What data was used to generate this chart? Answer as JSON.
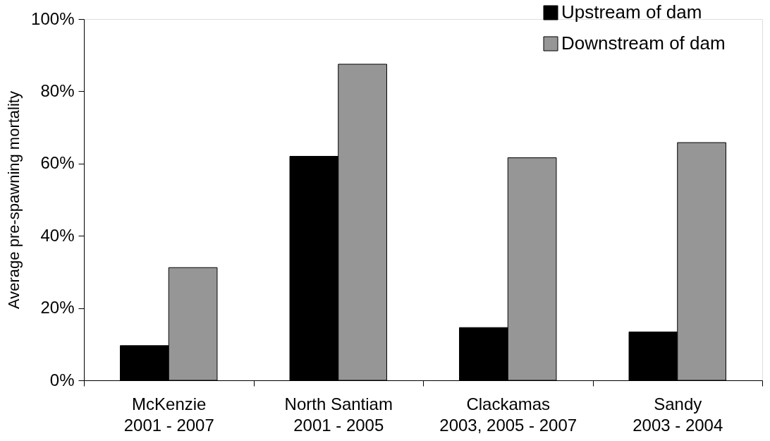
{
  "chart_data": {
    "type": "bar",
    "ylabel": "Average pre-spawning mortality",
    "categories": [
      "McKenzie\n2001 - 2007",
      "North Santiam\n2001 - 2005",
      "Clackamas\n2003, 2005 - 2007",
      "Sandy\n2003 - 2004"
    ],
    "series": [
      {
        "name": "Upstream of dam",
        "color": "#000000",
        "values": [
          9.6,
          62,
          14.6,
          13.4
        ]
      },
      {
        "name": "Downstream of dam",
        "color": "#969696",
        "values": [
          31.2,
          87.5,
          61.6,
          65.8
        ]
      }
    ],
    "ylim": [
      0,
      100
    ],
    "yticks": [
      {
        "value": 0,
        "label": "0%"
      },
      {
        "value": 20,
        "label": "20%"
      },
      {
        "value": 40,
        "label": "40%"
      },
      {
        "value": 60,
        "label": "60%"
      },
      {
        "value": 80,
        "label": "80%"
      },
      {
        "value": 100,
        "label": "100%"
      }
    ],
    "legend": "top right"
  }
}
